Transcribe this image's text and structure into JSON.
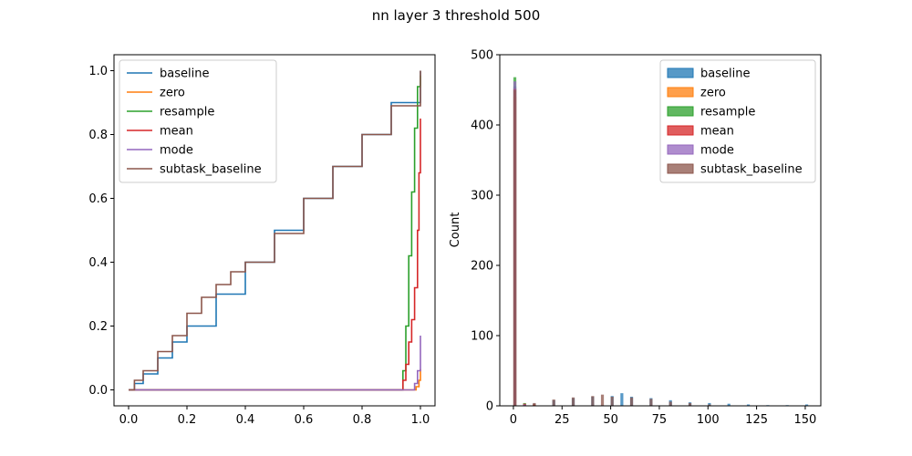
{
  "figure": {
    "title": "nn layer 3 threshold 500"
  },
  "chart_data": [
    {
      "type": "line",
      "title": "",
      "xlabel": "",
      "ylabel": "",
      "xlim": [
        -0.05,
        1.05
      ],
      "ylim": [
        -0.05,
        1.05
      ],
      "xticks": [
        0.0,
        0.2,
        0.4,
        0.6,
        0.8,
        1.0
      ],
      "xtick_labels": [
        "0.0",
        "0.2",
        "0.4",
        "0.6",
        "0.8",
        "1.0"
      ],
      "yticks": [
        0.0,
        0.2,
        0.4,
        0.6,
        0.8,
        1.0
      ],
      "ytick_labels": [
        "0.0",
        "0.2",
        "0.4",
        "0.6",
        "0.8",
        "1.0"
      ],
      "grid": false,
      "legend": "top-left",
      "series": [
        {
          "name": "baseline",
          "color": "#1f77b4",
          "step": true,
          "x": [
            0.0,
            0.02,
            0.05,
            0.1,
            0.15,
            0.2,
            0.3,
            0.4,
            0.5,
            0.6,
            0.7,
            0.8,
            0.9,
            1.0
          ],
          "y": [
            0.0,
            0.02,
            0.05,
            0.1,
            0.15,
            0.2,
            0.3,
            0.4,
            0.5,
            0.6,
            0.7,
            0.8,
            0.9,
            1.0
          ]
        },
        {
          "name": "zero",
          "color": "#ff7f0e",
          "step": true,
          "x": [
            0.0,
            0.97,
            0.985,
            0.995,
            1.0
          ],
          "y": [
            0.0,
            0.0,
            0.01,
            0.03,
            0.065
          ]
        },
        {
          "name": "resample",
          "color": "#2ca02c",
          "step": true,
          "x": [
            0.0,
            0.93,
            0.94,
            0.95,
            0.96,
            0.97,
            0.98,
            0.99,
            1.0
          ],
          "y": [
            0.0,
            0.0,
            0.06,
            0.2,
            0.42,
            0.62,
            0.82,
            0.95,
            0.985
          ]
        },
        {
          "name": "mean",
          "color": "#d62728",
          "step": true,
          "x": [
            0.0,
            0.93,
            0.94,
            0.95,
            0.96,
            0.97,
            0.98,
            0.99,
            0.995,
            1.0
          ],
          "y": [
            0.0,
            0.0,
            0.03,
            0.08,
            0.15,
            0.22,
            0.32,
            0.5,
            0.68,
            0.85
          ]
        },
        {
          "name": "mode",
          "color": "#9467bd",
          "step": true,
          "x": [
            0.0,
            0.96,
            0.98,
            0.99,
            1.0
          ],
          "y": [
            0.0,
            0.0,
            0.02,
            0.06,
            0.17
          ]
        },
        {
          "name": "subtask_baseline",
          "color": "#8c564b",
          "step": true,
          "x": [
            0.0,
            0.02,
            0.05,
            0.1,
            0.15,
            0.2,
            0.25,
            0.3,
            0.35,
            0.4,
            0.5,
            0.6,
            0.7,
            0.8,
            0.9,
            1.0
          ],
          "y": [
            0.0,
            0.03,
            0.06,
            0.12,
            0.17,
            0.24,
            0.29,
            0.33,
            0.37,
            0.4,
            0.49,
            0.6,
            0.7,
            0.8,
            0.89,
            1.0
          ]
        }
      ]
    },
    {
      "type": "bar",
      "title": "",
      "xlabel": "",
      "ylabel": "Count",
      "xlim": [
        -7,
        158
      ],
      "ylim": [
        0,
        500
      ],
      "xticks": [
        0,
        25,
        50,
        75,
        100,
        125,
        150
      ],
      "xtick_labels": [
        "0",
        "25",
        "50",
        "75",
        "100",
        "125",
        "150"
      ],
      "yticks": [
        0,
        100,
        200,
        300,
        400,
        500
      ],
      "ytick_labels": [
        "0",
        "100",
        "200",
        "300",
        "400",
        "500"
      ],
      "grid": false,
      "legend": "top-right",
      "series": [
        {
          "name": "baseline",
          "color": "#1f77b4",
          "x": [
            0,
            10,
            20,
            30,
            40,
            50,
            55,
            60,
            70,
            80,
            90,
            100,
            110,
            120,
            130,
            140,
            150
          ],
          "values": [
            455,
            3,
            8,
            11,
            13,
            14,
            18,
            13,
            11,
            8,
            5,
            4,
            3,
            2,
            1,
            1,
            2
          ]
        },
        {
          "name": "zero",
          "color": "#ff7f0e",
          "x": [
            0,
            5,
            10
          ],
          "values": [
            440,
            3,
            2
          ]
        },
        {
          "name": "resample",
          "color": "#2ca02c",
          "x": [
            0,
            5
          ],
          "values": [
            468,
            4
          ]
        },
        {
          "name": "mean",
          "color": "#d62728",
          "x": [
            0,
            5,
            10
          ],
          "values": [
            452,
            3,
            2
          ]
        },
        {
          "name": "mode",
          "color": "#9467bd",
          "x": [
            0,
            5
          ],
          "values": [
            462,
            2
          ]
        },
        {
          "name": "subtask_baseline",
          "color": "#8c564b",
          "x": [
            0,
            10,
            20,
            30,
            40,
            45,
            50,
            60,
            70,
            80,
            90,
            100
          ],
          "values": [
            450,
            4,
            9,
            12,
            14,
            16,
            13,
            12,
            10,
            6,
            4,
            2
          ]
        }
      ]
    }
  ]
}
